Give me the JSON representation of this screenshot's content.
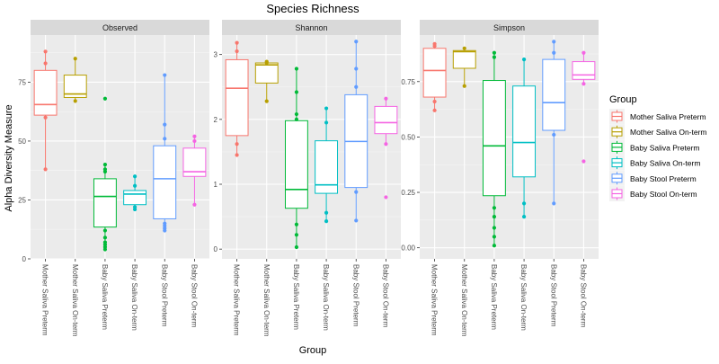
{
  "title": "Species Richness",
  "ylabel": "Alpha Diversity Measure",
  "xlabel": "Group",
  "legend": {
    "title": "Group",
    "position": "right",
    "items": [
      {
        "label": "Mother Saliva Preterm",
        "color": "#F8766D"
      },
      {
        "label": "Mother Saliva On-term",
        "color": "#B79F00"
      },
      {
        "label": "Baby Saliva Preterm",
        "color": "#00BA38"
      },
      {
        "label": "Baby Saliva On-term",
        "color": "#00BFC4"
      },
      {
        "label": "Baby Stool Preterm",
        "color": "#619CFF"
      },
      {
        "label": "Baby Stool On-term",
        "color": "#F564E3"
      }
    ]
  },
  "chart_data": [
    {
      "type": "box",
      "title": "Observed",
      "categories": [
        "Mother Saliva Preterm",
        "Mother Saliva On-term",
        "Baby Saliva Preterm",
        "Baby Saliva On-term",
        "Baby Stool Preterm",
        "Baby Stool On-term"
      ],
      "ylim": [
        0,
        95
      ],
      "yticks": [
        0,
        25,
        50,
        75
      ],
      "ytick_labels": [
        "0",
        "25",
        "50",
        "75"
      ],
      "boxes": [
        {
          "q1": 61,
          "median": 65.5,
          "q3": 80,
          "whisker_low": 38,
          "whisker_high": 88,
          "points": [
            38,
            60,
            83,
            88
          ]
        },
        {
          "q1": 68.5,
          "median": 70,
          "q3": 78,
          "whisker_low": 67,
          "whisker_high": 85,
          "points": [
            67,
            85
          ]
        },
        {
          "q1": 13.5,
          "median": 26.5,
          "q3": 34,
          "whisker_low": 4,
          "whisker_high": 40,
          "points": [
            68,
            4,
            5,
            6,
            7,
            9,
            12,
            37,
            38,
            40
          ]
        },
        {
          "q1": 23,
          "median": 27.5,
          "q3": 29,
          "whisker_low": 21,
          "whisker_high": 35,
          "points": [
            21,
            22,
            31,
            35
          ]
        },
        {
          "q1": 17,
          "median": 34,
          "q3": 48,
          "whisker_low": 12,
          "whisker_high": 78,
          "points": [
            12,
            13,
            14,
            15,
            51,
            57,
            78
          ]
        },
        {
          "q1": 35,
          "median": 37,
          "q3": 47,
          "whisker_low": 23,
          "whisker_high": 52,
          "points": [
            23,
            50,
            52
          ]
        }
      ]
    },
    {
      "type": "box",
      "title": "Shannon",
      "categories": [
        "Mother Saliva Preterm",
        "Mother Saliva On-term",
        "Baby Saliva Preterm",
        "Baby Saliva On-term",
        "Baby Stool Preterm",
        "Baby Stool On-term"
      ],
      "ylim": [
        -0.15,
        3.3
      ],
      "yticks": [
        0,
        1,
        2,
        3
      ],
      "ytick_labels": [
        "0",
        "1",
        "2",
        "3"
      ],
      "boxes": [
        {
          "q1": 1.75,
          "median": 2.48,
          "q3": 2.92,
          "whisker_low": 1.45,
          "whisker_high": 3.18,
          "points": [
            1.45,
            1.62,
            3.05,
            3.18
          ]
        },
        {
          "q1": 2.56,
          "median": 2.84,
          "q3": 2.87,
          "whisker_low": 2.28,
          "whisker_high": 2.89,
          "points": [
            2.28,
            2.87,
            2.89
          ]
        },
        {
          "q1": 0.63,
          "median": 0.92,
          "q3": 1.98,
          "whisker_low": 0.03,
          "whisker_high": 2.78,
          "points": [
            0.03,
            0.22,
            0.38,
            2.0,
            2.08,
            2.42,
            2.78
          ]
        },
        {
          "q1": 0.86,
          "median": 0.99,
          "q3": 1.67,
          "whisker_low": 0.43,
          "whisker_high": 2.17,
          "points": [
            0.43,
            0.56,
            1.95,
            2.17
          ]
        },
        {
          "q1": 0.95,
          "median": 1.66,
          "q3": 2.38,
          "whisker_low": 0.44,
          "whisker_high": 3.2,
          "points": [
            0.44,
            0.88,
            2.5,
            2.78,
            3.2
          ]
        },
        {
          "q1": 1.78,
          "median": 1.95,
          "q3": 2.2,
          "whisker_low": 1.62,
          "whisker_high": 2.32,
          "points": [
            0.8,
            1.62,
            2.32
          ]
        }
      ]
    },
    {
      "type": "box",
      "title": "Simpson",
      "categories": [
        "Mother Saliva Preterm",
        "Mother Saliva On-term",
        "Baby Saliva Preterm",
        "Baby Saliva On-term",
        "Baby Stool Preterm",
        "Baby Stool On-term"
      ],
      "ylim": [
        -0.05,
        0.96
      ],
      "yticks": [
        0,
        0.25,
        0.5,
        0.75
      ],
      "ytick_labels": [
        "0.00",
        "0.25",
        "0.50",
        "0.75"
      ],
      "boxes": [
        {
          "q1": 0.68,
          "median": 0.8,
          "q3": 0.9,
          "whisker_low": 0.62,
          "whisker_high": 0.92,
          "points": [
            0.62,
            0.66,
            0.91,
            0.92
          ]
        },
        {
          "q1": 0.81,
          "median": 0.885,
          "q3": 0.89,
          "whisker_low": 0.73,
          "whisker_high": 0.9,
          "points": [
            0.73,
            0.9
          ]
        },
        {
          "q1": 0.235,
          "median": 0.46,
          "q3": 0.755,
          "whisker_low": 0.01,
          "whisker_high": 0.88,
          "points": [
            0.01,
            0.05,
            0.09,
            0.14,
            0.18,
            0.86,
            0.88
          ]
        },
        {
          "q1": 0.32,
          "median": 0.475,
          "q3": 0.73,
          "whisker_low": 0.14,
          "whisker_high": 0.85,
          "points": [
            0.14,
            0.2,
            0.85
          ]
        },
        {
          "q1": 0.53,
          "median": 0.655,
          "q3": 0.85,
          "whisker_low": 0.2,
          "whisker_high": 0.93,
          "points": [
            0.2,
            0.51,
            0.88,
            0.93
          ]
        },
        {
          "q1": 0.76,
          "median": 0.78,
          "q3": 0.84,
          "whisker_low": 0.74,
          "whisker_high": 0.88,
          "points": [
            0.39,
            0.74,
            0.88
          ]
        }
      ]
    }
  ]
}
